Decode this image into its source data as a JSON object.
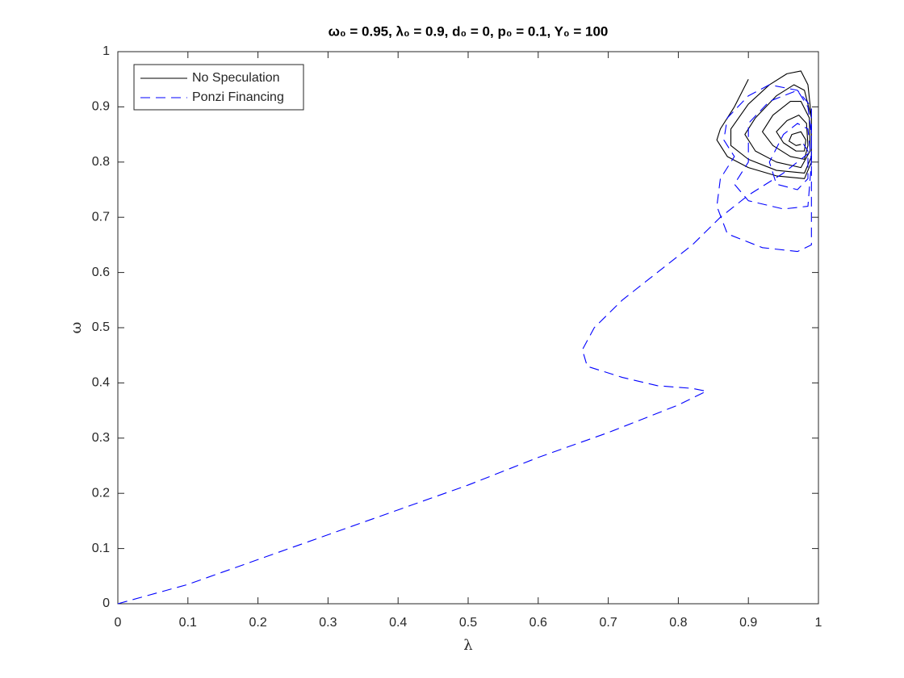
{
  "chart_data": {
    "type": "line",
    "title": "ω₀ = 0.95, λ₀ = 0.9, d₀ = 0, p₀ = 0.1, Y₀ = 100",
    "x_label": "λ",
    "y_label": "ω",
    "xlim": [
      0,
      1
    ],
    "ylim": [
      0,
      1
    ],
    "xticks": [
      0,
      0.1,
      0.2,
      0.3,
      0.4,
      0.5,
      0.6,
      0.7,
      0.8,
      0.9,
      1
    ],
    "yticks": [
      0,
      0.1,
      0.2,
      0.3,
      0.4,
      0.5,
      0.6,
      0.7,
      0.8,
      0.9,
      1
    ],
    "legend": "upper-left",
    "series": [
      {
        "name": "No Speculation",
        "color": "#000000",
        "dash": "solid",
        "x": [
          0.9,
          0.88,
          0.86,
          0.855,
          0.87,
          0.9,
          0.94,
          0.98,
          0.99,
          0.99,
          0.985,
          0.975,
          0.955,
          0.93,
          0.9,
          0.875,
          0.875,
          0.9,
          0.94,
          0.98,
          0.99,
          0.99,
          0.98,
          0.965,
          0.94,
          0.91,
          0.895,
          0.91,
          0.94,
          0.975,
          0.988,
          0.987,
          0.975,
          0.96,
          0.935,
          0.92,
          0.935,
          0.96,
          0.98,
          0.985,
          0.983,
          0.972,
          0.955,
          0.94,
          0.95,
          0.968,
          0.98,
          0.982,
          0.975,
          0.962,
          0.958,
          0.968,
          0.975
        ],
        "values": [
          0.95,
          0.9,
          0.86,
          0.84,
          0.81,
          0.79,
          0.775,
          0.77,
          0.8,
          0.88,
          0.94,
          0.965,
          0.96,
          0.94,
          0.905,
          0.86,
          0.83,
          0.805,
          0.785,
          0.78,
          0.81,
          0.88,
          0.93,
          0.94,
          0.92,
          0.88,
          0.85,
          0.82,
          0.8,
          0.79,
          0.82,
          0.88,
          0.91,
          0.91,
          0.885,
          0.855,
          0.83,
          0.81,
          0.805,
          0.83,
          0.87,
          0.885,
          0.875,
          0.855,
          0.835,
          0.82,
          0.82,
          0.84,
          0.855,
          0.85,
          0.838,
          0.83,
          0.832
        ]
      },
      {
        "name": "Ponzi Financing",
        "color": "#0000ff",
        "dash": "dashed",
        "x": [
          0,
          0.1,
          0.2,
          0.3,
          0.4,
          0.5,
          0.6,
          0.7,
          0.8,
          0.84,
          0.82,
          0.77,
          0.72,
          0.67,
          0.663,
          0.68,
          0.72,
          0.77,
          0.82,
          0.86,
          0.9,
          0.95,
          0.99,
          0.99,
          0.97,
          0.93,
          0.9,
          0.87,
          0.865,
          0.88,
          0.86,
          0.855,
          0.87,
          0.92,
          0.97,
          0.99,
          0.99,
          0.99,
          0.985,
          0.97,
          0.93,
          0.9,
          0.9,
          0.88,
          0.9,
          0.95,
          0.985,
          0.99,
          0.985,
          0.97,
          0.95,
          0.93,
          0.94,
          0.97,
          0.985,
          0.985,
          0.975
        ],
        "values": [
          0,
          0.035,
          0.08,
          0.125,
          0.17,
          0.215,
          0.265,
          0.31,
          0.36,
          0.385,
          0.39,
          0.395,
          0.41,
          0.43,
          0.46,
          0.5,
          0.55,
          0.6,
          0.65,
          0.7,
          0.74,
          0.78,
          0.82,
          0.9,
          0.93,
          0.94,
          0.92,
          0.88,
          0.84,
          0.81,
          0.77,
          0.72,
          0.67,
          0.645,
          0.638,
          0.65,
          0.75,
          0.85,
          0.9,
          0.93,
          0.91,
          0.87,
          0.8,
          0.76,
          0.73,
          0.715,
          0.72,
          0.8,
          0.86,
          0.87,
          0.85,
          0.8,
          0.76,
          0.75,
          0.77,
          0.82,
          0.84
        ]
      }
    ]
  }
}
